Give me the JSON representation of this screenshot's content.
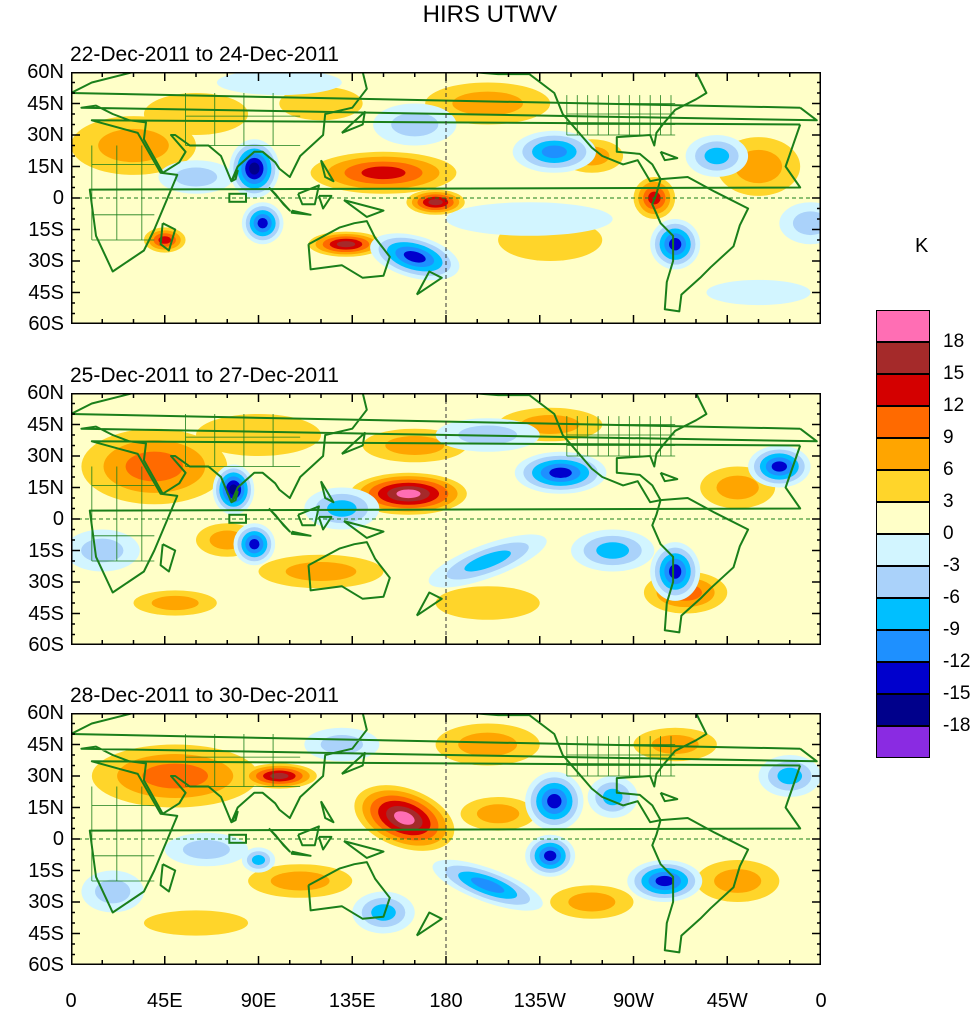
{
  "title": "HIRS UTWV",
  "panels": [
    {
      "label": "22-Dec-2011 to 24-Dec-2011"
    },
    {
      "label": "25-Dec-2011 to 27-Dec-2011"
    },
    {
      "label": "28-Dec-2011 to 30-Dec-2011"
    }
  ],
  "y_ticks": [
    "60N",
    "45N",
    "30N",
    "15N",
    "0",
    "15S",
    "30S",
    "45S",
    "60S"
  ],
  "x_ticks": [
    "0",
    "45E",
    "90E",
    "135E",
    "180",
    "135W",
    "90W",
    "45W",
    "0"
  ],
  "colorbar": {
    "unit": "K",
    "labels": [
      "18",
      "15",
      "12",
      "9",
      "6",
      "3",
      "0",
      "-3",
      "-6",
      "-9",
      "-12",
      "-15",
      "-18"
    ],
    "colors": [
      "#ff6eb4",
      "#a52a2a",
      "#d40000",
      "#ff6a00",
      "#ffa500",
      "#ffd52a",
      "#ffffc8",
      "#d2f5ff",
      "#aad2fa",
      "#00bfff",
      "#1e90ff",
      "#0000cd",
      "#00008b",
      "#8a2be2"
    ]
  },
  "map": {
    "coast_color": "#1a7f1a"
  }
}
